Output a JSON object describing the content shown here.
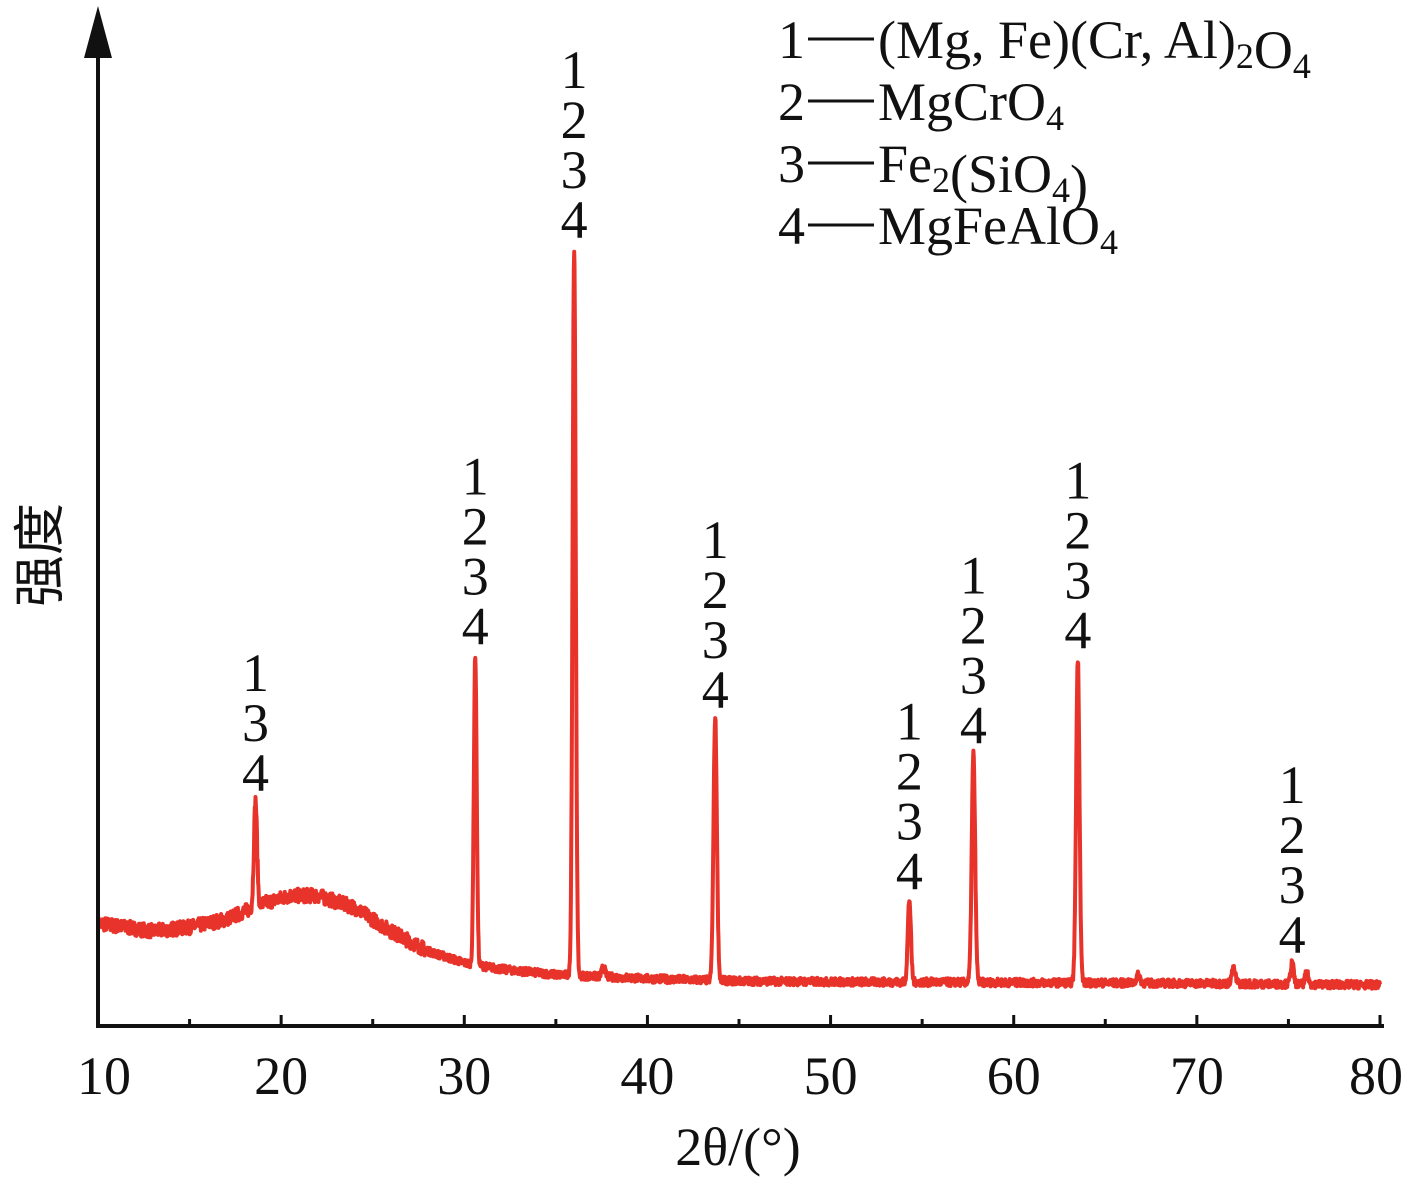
{
  "chart_data": {
    "type": "line",
    "xlabel": "2θ/(°)",
    "ylabel": "强度",
    "xlim": [
      10,
      80
    ],
    "xticks": [
      10,
      20,
      30,
      40,
      50,
      60,
      70,
      80
    ],
    "y_ticks_shown": false,
    "grid": false,
    "line_color": "#e8332a",
    "legend_placement": "top-right",
    "legend": [
      {
        "num": "1",
        "parts": [
          [
            "(Mg, Fe)(Cr, Al)",
            ""
          ],
          [
            "2",
            "sub"
          ],
          [
            "O",
            ""
          ],
          [
            "4",
            "sub"
          ]
        ]
      },
      {
        "num": "2",
        "parts": [
          [
            "MgCrO",
            ""
          ],
          [
            "4",
            "sub"
          ]
        ]
      },
      {
        "num": "3",
        "parts": [
          [
            "Fe",
            ""
          ],
          [
            "2",
            "sub"
          ],
          [
            "(SiO",
            ""
          ],
          [
            "4",
            "sub"
          ],
          [
            ")",
            ""
          ]
        ]
      },
      {
        "num": "4",
        "parts": [
          [
            "MgFeAlO",
            ""
          ],
          [
            "4",
            "sub"
          ]
        ]
      }
    ],
    "baseline": [
      [
        10,
        0.13
      ],
      [
        13,
        0.12
      ],
      [
        15,
        0.125
      ],
      [
        17,
        0.135
      ],
      [
        19,
        0.155
      ],
      [
        20.5,
        0.165
      ],
      [
        22,
        0.165
      ],
      [
        24,
        0.15
      ],
      [
        26,
        0.12
      ],
      [
        28,
        0.095
      ],
      [
        30,
        0.08
      ],
      [
        32,
        0.072
      ],
      [
        35,
        0.065
      ],
      [
        40,
        0.06
      ],
      [
        45,
        0.057
      ],
      [
        50,
        0.056
      ],
      [
        60,
        0.055
      ],
      [
        70,
        0.054
      ],
      [
        80,
        0.052
      ]
    ],
    "peaks": [
      {
        "x": 18.6,
        "intensity": 0.285,
        "width": 0.12,
        "labels": [
          "1",
          "3",
          "4"
        ]
      },
      {
        "x": 30.6,
        "intensity": 0.47,
        "width": 0.11,
        "labels": [
          "1",
          "2",
          "3",
          "4"
        ]
      },
      {
        "x": 36.0,
        "intensity": 0.985,
        "width": 0.12,
        "labels": [
          "1",
          "2",
          "3",
          "4"
        ]
      },
      {
        "x": 43.7,
        "intensity": 0.39,
        "width": 0.13,
        "labels": [
          "1",
          "2",
          "3",
          "4"
        ]
      },
      {
        "x": 54.3,
        "intensity": 0.16,
        "width": 0.12,
        "labels": [
          "1",
          "2",
          "3",
          "4"
        ]
      },
      {
        "x": 57.8,
        "intensity": 0.345,
        "width": 0.13,
        "labels": [
          "1",
          "2",
          "3",
          "4"
        ]
      },
      {
        "x": 63.5,
        "intensity": 0.465,
        "width": 0.13,
        "labels": [
          "1",
          "2",
          "3",
          "4"
        ]
      },
      {
        "x": 75.2,
        "intensity": 0.08,
        "width": 0.12,
        "labels": [
          "1",
          "2",
          "3",
          "4"
        ]
      }
    ],
    "minor_peaks": [
      {
        "x": 37.6,
        "intensity": 0.013,
        "width": 0.12
      },
      {
        "x": 66.8,
        "intensity": 0.01,
        "width": 0.15
      },
      {
        "x": 72.0,
        "intensity": 0.018,
        "width": 0.15
      },
      {
        "x": 76.0,
        "intensity": 0.015,
        "width": 0.12
      }
    ]
  }
}
